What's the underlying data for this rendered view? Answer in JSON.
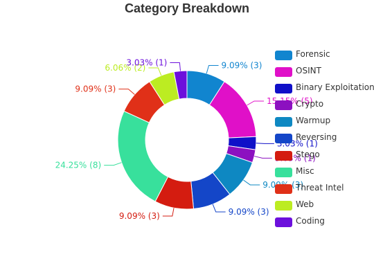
{
  "chart_data": {
    "type": "pie",
    "variant": "donut",
    "title": "Category Breakdown",
    "legend_position": "right",
    "slices": [
      {
        "name": "Forensic",
        "count": 3,
        "label": "9.09% (3)",
        "color": "#1185cf"
      },
      {
        "name": "OSINT",
        "count": 5,
        "label": "15.15% (5)",
        "color": "#e010c8"
      },
      {
        "name": "Binary Exploitation",
        "count": 1,
        "label": "3.03% (1)",
        "color": "#1010c8"
      },
      {
        "name": "Crypto",
        "count": 1,
        "label": "3.03% (1)",
        "color": "#8c10c0"
      },
      {
        "name": "Warmup",
        "count": 3,
        "label": "9.09% (3)",
        "color": "#0e88c2"
      },
      {
        "name": "Reversing",
        "count": 3,
        "label": "9.09% (3)",
        "color": "#1446c8"
      },
      {
        "name": "Stego",
        "count": 3,
        "label": "9.09% (3)",
        "color": "#d41c10"
      },
      {
        "name": "Misc",
        "count": 8,
        "label": "24.25% (8)",
        "color": "#38e09c"
      },
      {
        "name": "Threat Intel",
        "count": 3,
        "label": "9.09% (3)",
        "color": "#e03018"
      },
      {
        "name": "Web",
        "count": 2,
        "label": "6.06% (2)",
        "color": "#bcec22"
      },
      {
        "name": "Coding",
        "count": 1,
        "label": "3.03% (1)",
        "color": "#6c10dc"
      }
    ]
  }
}
